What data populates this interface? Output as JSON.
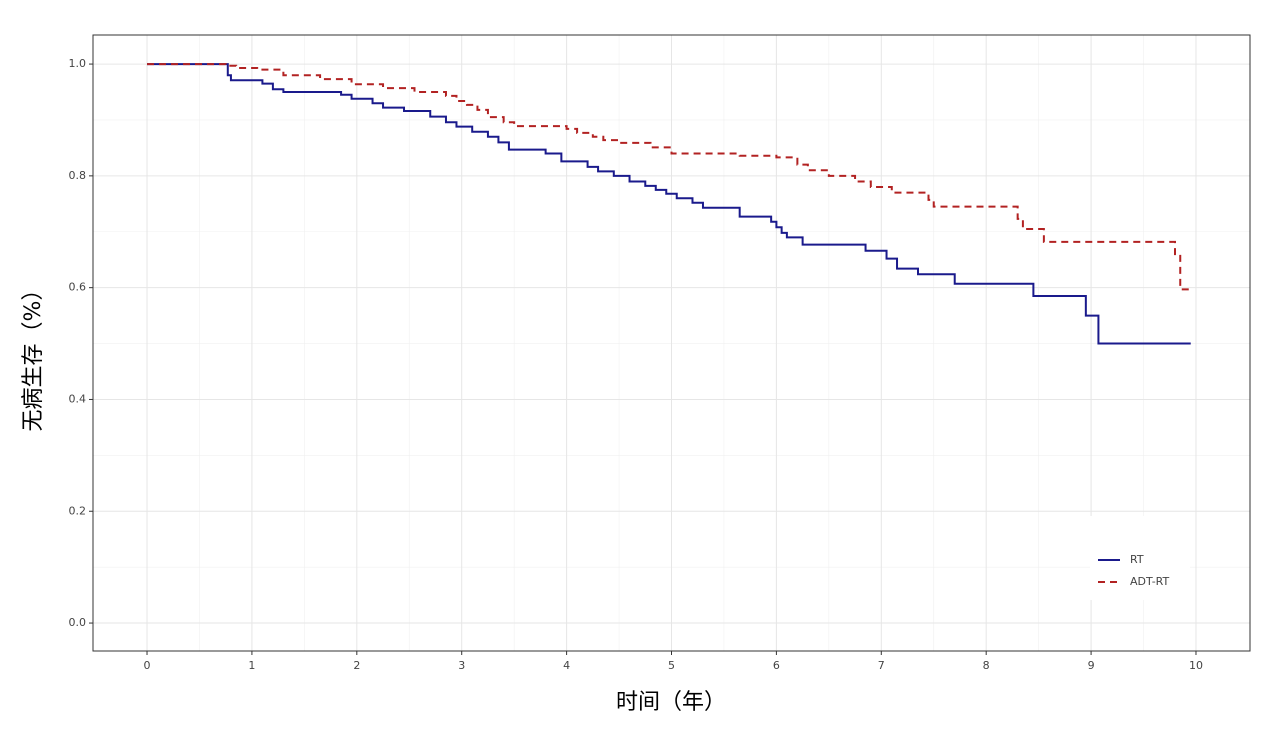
{
  "chart_data": {
    "type": "step",
    "xlabel": "时间（年）",
    "ylabel": "无病生存（%）",
    "xlim": [
      -0.515,
      10.515
    ],
    "ylim": [
      -0.05,
      1.052
    ],
    "xticks": [
      0,
      1,
      2,
      3,
      4,
      5,
      6,
      7,
      8,
      9,
      10
    ],
    "yticks": [
      {
        "value": 0,
        "label": "0.0"
      },
      0.2,
      0.4,
      0.6,
      0.8,
      {
        "value": 1,
        "label": "1.0"
      }
    ],
    "grid": true,
    "legend": "bottom-right",
    "series": [
      {
        "name": "RT",
        "color": "#1a1a8c",
        "dash": "solid",
        "x": [
          0,
          0.77,
          0.8,
          1.1,
          1.2,
          1.3,
          1.85,
          1.95,
          2.15,
          2.25,
          2.45,
          2.7,
          2.85,
          2.95,
          3.1,
          3.25,
          3.35,
          3.45,
          3.8,
          3.95,
          4.2,
          4.3,
          4.45,
          4.6,
          4.75,
          4.85,
          4.95,
          5.05,
          5.2,
          5.3,
          5.65,
          5.95,
          6.0,
          6.05,
          6.1,
          6.25,
          6.85,
          7.05,
          7.15,
          7.35,
          7.7,
          8.45,
          8.95,
          9.07,
          9.95
        ],
        "values": [
          1.0,
          0.98,
          0.971,
          0.965,
          0.955,
          0.95,
          0.945,
          0.938,
          0.93,
          0.922,
          0.916,
          0.906,
          0.896,
          0.888,
          0.879,
          0.87,
          0.86,
          0.847,
          0.84,
          0.826,
          0.816,
          0.808,
          0.8,
          0.79,
          0.782,
          0.775,
          0.768,
          0.76,
          0.752,
          0.743,
          0.727,
          0.718,
          0.708,
          0.698,
          0.69,
          0.677,
          0.666,
          0.652,
          0.634,
          0.624,
          0.607,
          0.585,
          0.55,
          0.5,
          0.5
        ]
      },
      {
        "name": "ADT-RT",
        "color": "#b22222",
        "dash": "dashed",
        "x": [
          0,
          0.75,
          0.85,
          1.05,
          1.3,
          1.65,
          1.95,
          2.25,
          2.55,
          2.85,
          2.95,
          3.05,
          3.15,
          3.25,
          3.4,
          3.5,
          4.0,
          4.1,
          4.25,
          4.35,
          4.5,
          4.8,
          5.0,
          5.65,
          6.0,
          6.2,
          6.3,
          6.5,
          6.75,
          6.9,
          7.1,
          7.45,
          7.5,
          8.3,
          8.35,
          8.55,
          9.8,
          9.85,
          9.95
        ],
        "values": [
          1.0,
          0.997,
          0.993,
          0.99,
          0.98,
          0.973,
          0.964,
          0.957,
          0.95,
          0.943,
          0.934,
          0.927,
          0.918,
          0.905,
          0.896,
          0.889,
          0.884,
          0.877,
          0.87,
          0.864,
          0.859,
          0.851,
          0.84,
          0.836,
          0.833,
          0.82,
          0.81,
          0.8,
          0.79,
          0.78,
          0.77,
          0.757,
          0.745,
          0.723,
          0.705,
          0.682,
          0.66,
          0.597,
          0.597
        ]
      }
    ]
  }
}
